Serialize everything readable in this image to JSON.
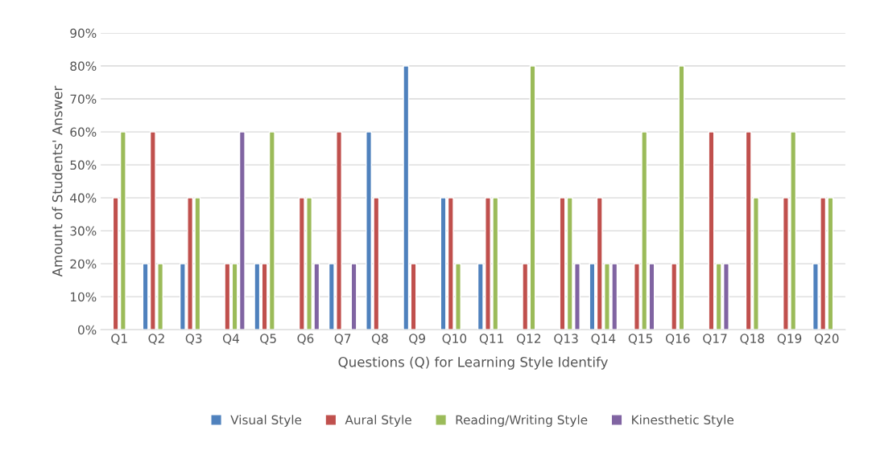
{
  "chart_data": {
    "type": "bar",
    "xlabel": "Questions (Q) for Learning Style Identify",
    "ylabel": "Amount of Students' Answer",
    "categories": [
      "Q1",
      "Q2",
      "Q3",
      "Q4",
      "Q5",
      "Q6",
      "Q7",
      "Q8",
      "Q9",
      "Q10",
      "Q11",
      "Q12",
      "Q13",
      "Q14",
      "Q15",
      "Q16",
      "Q17",
      "Q18",
      "Q19",
      "Q20"
    ],
    "series": [
      {
        "name": "Visual Style",
        "color": "#4f81bd",
        "values": [
          null,
          20,
          20,
          null,
          20,
          null,
          20,
          60,
          80,
          40,
          20,
          null,
          null,
          20,
          null,
          null,
          null,
          null,
          null,
          20
        ]
      },
      {
        "name": "Aural Style",
        "color": "#c0504d",
        "values": [
          40,
          60,
          40,
          20,
          20,
          40,
          60,
          40,
          20,
          40,
          40,
          20,
          40,
          40,
          20,
          20,
          60,
          60,
          40,
          40
        ]
      },
      {
        "name": "Reading/Writing Style",
        "color": "#9bbb59",
        "values": [
          60,
          20,
          40,
          20,
          60,
          40,
          null,
          null,
          null,
          20,
          40,
          80,
          40,
          20,
          60,
          80,
          20,
          40,
          60,
          40
        ]
      },
      {
        "name": "Kinesthetic Style",
        "color": "#8064a2",
        "values": [
          null,
          null,
          null,
          60,
          null,
          20,
          20,
          null,
          null,
          null,
          null,
          null,
          20,
          20,
          20,
          null,
          20,
          null,
          null,
          null
        ]
      }
    ],
    "ylim": [
      0,
      90
    ],
    "yticks": [
      {
        "value": 0,
        "label": "0%"
      },
      {
        "value": 10,
        "label": "10%"
      },
      {
        "value": 20,
        "label": "20%"
      },
      {
        "value": 30,
        "label": "30%"
      },
      {
        "value": 40,
        "label": "40%"
      },
      {
        "value": 50,
        "label": "50%"
      },
      {
        "value": 60,
        "label": "60%"
      },
      {
        "value": 70,
        "label": "70%"
      },
      {
        "value": 80,
        "label": "80%"
      },
      {
        "value": 90,
        "label": "90%"
      }
    ],
    "grid": "y",
    "legend": "bottom"
  }
}
